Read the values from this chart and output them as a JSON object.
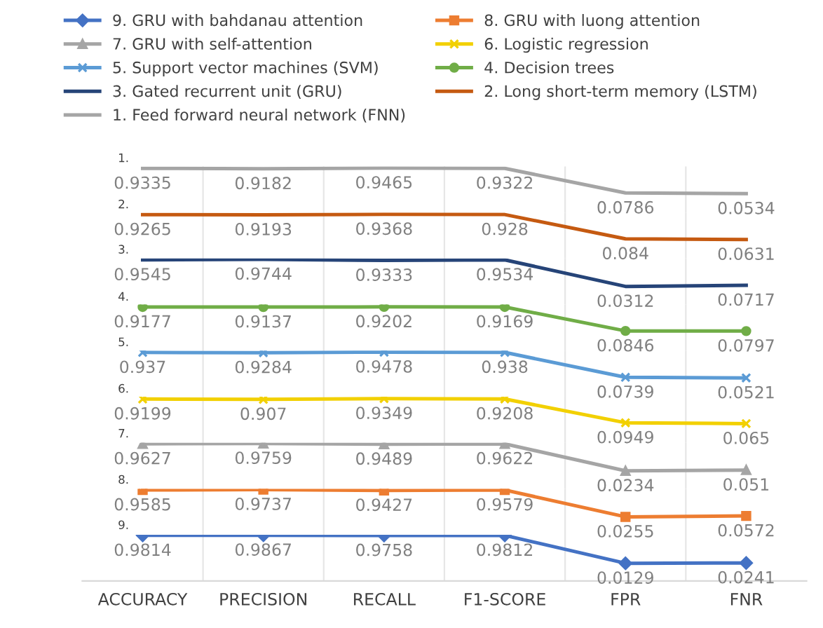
{
  "chart_data": [
    {
      "type": "line",
      "grid": "x",
      "legend": "top",
      "tick_labels": false,
      "ylim": [
        -0.6,
        1
      ],
      "data_labels": true,
      "categories": [
        null,
        null,
        null,
        null,
        null,
        null
      ],
      "annotations": [
        "1."
      ],
      "series": [
        {
          "name": "1. Feed forward neural network (FNN)",
          "color": "#a5a5a5",
          "marker": "none",
          "values": [
            0.9335,
            0.9182,
            0.9465,
            0.9322,
            0.0786,
            0.0534
          ]
        }
      ]
    },
    {
      "type": "line",
      "grid": "x",
      "legend": "top",
      "tick_labels": false,
      "ylim": [
        -0.6,
        1
      ],
      "data_labels": true,
      "categories": [
        null,
        null,
        null,
        null,
        null,
        null
      ],
      "annotations": [
        "2."
      ],
      "series": [
        {
          "name": "2. Long short-term memory (LSTM)",
          "color": "#c55a11",
          "marker": "none",
          "values": [
            0.9265,
            0.9193,
            0.9368,
            0.928,
            0.084,
            0.0631
          ]
        }
      ]
    },
    {
      "type": "line",
      "grid": "x",
      "legend": "top",
      "tick_labels": false,
      "ylim": [
        -0.6,
        1
      ],
      "data_labels": true,
      "categories": [
        null,
        null,
        null,
        null,
        null,
        null
      ],
      "annotations": [
        "3."
      ],
      "series": [
        {
          "name": "3. Gated recurrent unit (GRU)",
          "color": "#264478",
          "marker": "none",
          "values": [
            0.9545,
            0.9744,
            0.9333,
            0.9534,
            0.0312,
            0.0717
          ]
        }
      ]
    },
    {
      "type": "line",
      "grid": "x",
      "legend": "top",
      "tick_labels": false,
      "ylim": [
        -0.6,
        1
      ],
      "data_labels": true,
      "categories": [
        null,
        null,
        null,
        null,
        null,
        null
      ],
      "annotations": [
        "4."
      ],
      "series": [
        {
          "name": "4. Decision trees",
          "color": "#70ad47",
          "marker": "circle",
          "values": [
            0.9177,
            0.9137,
            0.9202,
            0.9169,
            0.0846,
            0.0797
          ]
        }
      ]
    },
    {
      "type": "line",
      "grid": "x",
      "legend": "top",
      "tick_labels": false,
      "ylim": [
        -0.6,
        1
      ],
      "data_labels": true,
      "categories": [
        null,
        null,
        null,
        null,
        null,
        null
      ],
      "annotations": [
        "5."
      ],
      "series": [
        {
          "name": "5. Support vector machines (SVM)",
          "color": "#5b9bd5",
          "marker": "cross",
          "values": [
            0.937,
            0.9284,
            0.9478,
            0.938,
            0.0739,
            0.0521
          ]
        }
      ]
    },
    {
      "type": "line",
      "grid": "x",
      "legend": "top",
      "tick_labels": false,
      "ylim": [
        -0.6,
        1
      ],
      "data_labels": true,
      "categories": [
        null,
        null,
        null,
        null,
        null,
        null
      ],
      "annotations": [
        "6."
      ],
      "series": [
        {
          "name": "6. Logistic regression",
          "color": "#f2d000",
          "marker": "cross",
          "values": [
            0.9199,
            0.907,
            0.9349,
            0.9208,
            0.0949,
            0.065
          ]
        }
      ]
    },
    {
      "type": "line",
      "grid": "x",
      "legend": "top",
      "tick_labels": false,
      "ylim": [
        -0.6,
        1
      ],
      "data_labels": true,
      "categories": [
        null,
        null,
        null,
        null,
        null,
        null
      ],
      "annotations": [
        "7."
      ],
      "series": [
        {
          "name": "7. GRU with self-attention",
          "color": "#a5a5a5",
          "marker": "triangle",
          "values": [
            0.9627,
            0.9759,
            0.9489,
            0.9622,
            0.0234,
            0.051
          ]
        }
      ]
    },
    {
      "type": "line",
      "grid": "x",
      "legend": "top",
      "tick_labels": false,
      "ylim": [
        -0.6,
        1
      ],
      "data_labels": true,
      "categories": [
        null,
        null,
        null,
        null,
        null,
        null
      ],
      "annotations": [
        "8."
      ],
      "series": [
        {
          "name": "8. GRU with luong attention",
          "color": "#ed7d31",
          "marker": "square",
          "values": [
            0.9585,
            0.9737,
            0.9427,
            0.9579,
            0.0255,
            0.0572
          ]
        }
      ]
    },
    {
      "type": "line",
      "grid": "x",
      "legend": "top",
      "tick_labels": "x",
      "ylim": [
        -0.6,
        1
      ],
      "data_labels": true,
      "categories": [
        "ACCURACY",
        "PRECISION",
        "RECALL",
        "F1-SCORE",
        "FPR",
        "FNR"
      ],
      "annotations": [
        "9."
      ],
      "series": [
        {
          "name": "9. GRU with bahdanau attention",
          "color": "#4472c4",
          "marker": "diamond",
          "values": [
            0.9814,
            0.9867,
            0.9758,
            0.9812,
            0.0129,
            0.0241
          ]
        }
      ]
    }
  ]
}
